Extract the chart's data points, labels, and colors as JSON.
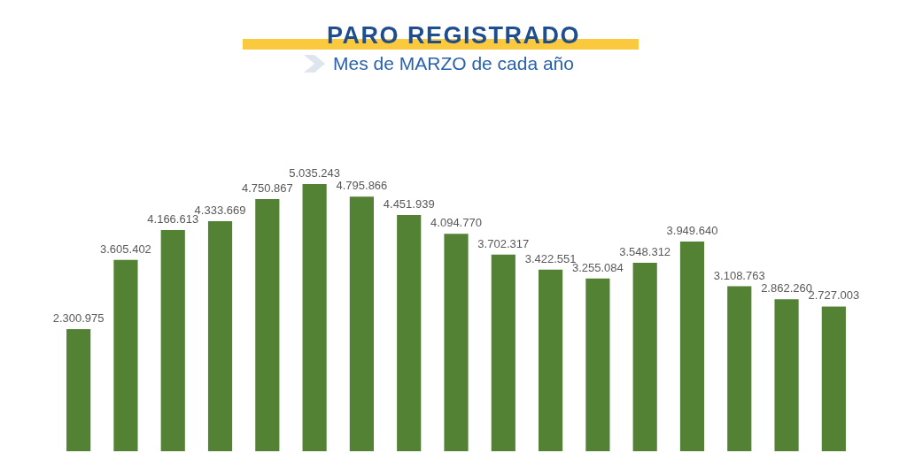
{
  "chart_data": {
    "type": "bar",
    "title": "PARO REGISTRADO",
    "subtitle": "Mes de MARZO de cada año",
    "categories": [
      null,
      null,
      null,
      null,
      null,
      null,
      null,
      null,
      null,
      null,
      null,
      null,
      null,
      null,
      null,
      null,
      null
    ],
    "values": [
      2300975,
      3605402,
      4166613,
      4333669,
      4750867,
      5035243,
      4795866,
      4451939,
      4094770,
      3702317,
      3422551,
      3255084,
      3548312,
      3949640,
      3108763,
      2862260,
      2727003
    ],
    "value_labels": [
      "2.300.975",
      "3.605.402",
      "4.166.613",
      "4.333.669",
      "4.750.867",
      "5.035.243",
      "4.795.866",
      "4.451.939",
      "4.094.770",
      "3.702.317",
      "3.422.551",
      "3.255.084",
      "3.548.312",
      "3.949.640",
      "3.108.763",
      "2.862.260",
      "2.727.003"
    ],
    "color": "#548235",
    "tick_labels": false
  }
}
